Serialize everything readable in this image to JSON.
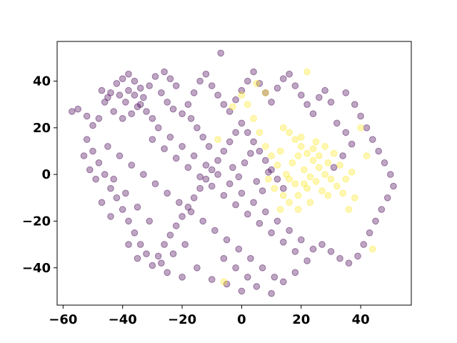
{
  "chart_data": {
    "type": "scatter",
    "title": "",
    "xlabel": "",
    "ylabel": "",
    "xlim": [
      -62,
      57
    ],
    "ylim": [
      -56,
      57
    ],
    "grid": false,
    "legend": "none",
    "x_ticks": [
      -60,
      -40,
      -20,
      0,
      20,
      40
    ],
    "y_ticks": [
      -40,
      -20,
      0,
      20,
      40
    ],
    "x_tick_labels": [
      "−60",
      "−40",
      "−20",
      "0",
      "20",
      "40"
    ],
    "y_tick_labels": [
      "−40",
      "−20",
      "0",
      "20",
      "40"
    ],
    "point_alpha": 0.35,
    "series": [
      {
        "color": "#440154",
        "points": [
          [
            -57,
            27
          ],
          [
            -55,
            28
          ],
          [
            -52,
            25
          ],
          [
            -50,
            21
          ],
          [
            -48,
            24
          ],
          [
            -46,
            31
          ],
          [
            -44,
            35
          ],
          [
            -42,
            39
          ],
          [
            -40,
            41
          ],
          [
            -38,
            43
          ],
          [
            -36,
            40
          ],
          [
            -34,
            37
          ],
          [
            -33,
            33
          ],
          [
            -35,
            29
          ],
          [
            -37,
            26
          ],
          [
            -40,
            24
          ],
          [
            -43,
            27
          ],
          [
            -45,
            33
          ],
          [
            -47,
            36
          ],
          [
            -41,
            34
          ],
          [
            -39,
            31
          ],
          [
            -38,
            36
          ],
          [
            -36,
            34
          ],
          [
            -34,
            30
          ],
          [
            -32,
            27
          ],
          [
            -30,
            24
          ],
          [
            -31,
            38
          ],
          [
            -29,
            42
          ],
          [
            -26,
            44
          ],
          [
            -24,
            41
          ],
          [
            -22,
            38
          ],
          [
            -27,
            35
          ],
          [
            -25,
            31
          ],
          [
            -23,
            28
          ],
          [
            -20,
            26
          ],
          [
            -18,
            30
          ],
          [
            -16,
            35
          ],
          [
            -14,
            40
          ],
          [
            -12,
            43
          ],
          [
            -10,
            38
          ],
          [
            -8,
            34
          ],
          [
            -6,
            30
          ],
          [
            -4,
            27
          ],
          [
            -2,
            32
          ],
          [
            0,
            36
          ],
          [
            2,
            40
          ],
          [
            4,
            44
          ],
          [
            6,
            39
          ],
          [
            8,
            35
          ],
          [
            10,
            31
          ],
          [
            12,
            37
          ],
          [
            14,
            41
          ],
          [
            16,
            43
          ],
          [
            18,
            38
          ],
          [
            20,
            34
          ],
          [
            22,
            30
          ],
          [
            24,
            26
          ],
          [
            26,
            33
          ],
          [
            28,
            36
          ],
          [
            30,
            31
          ],
          [
            -7,
            52
          ],
          [
            -52,
            15
          ],
          [
            -50,
            10
          ],
          [
            -48,
            5
          ],
          [
            -46,
            0
          ],
          [
            -44,
            -6
          ],
          [
            -42,
            -10
          ],
          [
            -40,
            -15
          ],
          [
            -38,
            -20
          ],
          [
            -36,
            -25
          ],
          [
            -34,
            -30
          ],
          [
            -32,
            -34
          ],
          [
            -30,
            -39
          ],
          [
            -28,
            -35
          ],
          [
            -26,
            -30
          ],
          [
            -24,
            -26
          ],
          [
            -22,
            -22
          ],
          [
            -20,
            -18
          ],
          [
            -18,
            -14
          ],
          [
            -16,
            -10
          ],
          [
            -14,
            -6
          ],
          [
            -12,
            -2
          ],
          [
            -10,
            2
          ],
          [
            -8,
            6
          ],
          [
            -6,
            10
          ],
          [
            -4,
            14
          ],
          [
            -2,
            18
          ],
          [
            0,
            22
          ],
          [
            2,
            18
          ],
          [
            4,
            14
          ],
          [
            6,
            10
          ],
          [
            8,
            6
          ],
          [
            10,
            2
          ],
          [
            12,
            -2
          ],
          [
            14,
            -6
          ],
          [
            -45,
            12
          ],
          [
            -41,
            8
          ],
          [
            -37,
            4
          ],
          [
            -33,
            0
          ],
          [
            -29,
            -4
          ],
          [
            -25,
            -8
          ],
          [
            -21,
            -12
          ],
          [
            -17,
            -16
          ],
          [
            -13,
            -20
          ],
          [
            -9,
            -24
          ],
          [
            -5,
            -28
          ],
          [
            -1,
            -32
          ],
          [
            3,
            -36
          ],
          [
            7,
            -40
          ],
          [
            11,
            -44
          ],
          [
            -30,
            15
          ],
          [
            -26,
            11
          ],
          [
            -22,
            7
          ],
          [
            -18,
            3
          ],
          [
            -14,
            -1
          ],
          [
            -10,
            -5
          ],
          [
            -6,
            -9
          ],
          [
            -2,
            -13
          ],
          [
            2,
            -17
          ],
          [
            6,
            -21
          ],
          [
            10,
            -25
          ],
          [
            14,
            -29
          ],
          [
            18,
            -33
          ],
          [
            22,
            -37
          ],
          [
            -28,
            20
          ],
          [
            -24,
            16
          ],
          [
            -20,
            12
          ],
          [
            -16,
            8
          ],
          [
            -12,
            4
          ],
          [
            -8,
            0
          ],
          [
            -4,
            -4
          ],
          [
            0,
            -8
          ],
          [
            4,
            -12
          ],
          [
            8,
            -16
          ],
          [
            12,
            -20
          ],
          [
            16,
            -24
          ],
          [
            20,
            -28
          ],
          [
            24,
            -32
          ],
          [
            -15,
            -40
          ],
          [
            -10,
            -45
          ],
          [
            -5,
            -47
          ],
          [
            0,
            -50
          ],
          [
            5,
            -48
          ],
          [
            10,
            -51
          ],
          [
            14,
            -46
          ],
          [
            18,
            -42
          ],
          [
            -20,
            -44
          ],
          [
            -25,
            -42
          ],
          [
            -35,
            -36
          ],
          [
            -38,
            -30
          ],
          [
            -44,
            -18
          ],
          [
            -47,
            -12
          ],
          [
            -49,
            -2
          ],
          [
            -51,
            2
          ],
          [
            -53,
            8
          ],
          [
            35,
            35
          ],
          [
            38,
            30
          ],
          [
            40,
            25
          ],
          [
            42,
            20
          ],
          [
            44,
            15
          ],
          [
            46,
            10
          ],
          [
            48,
            5
          ],
          [
            50,
            0
          ],
          [
            51,
            -5
          ],
          [
            49,
            -10
          ],
          [
            47,
            -15
          ],
          [
            45,
            -20
          ],
          [
            43,
            -25
          ],
          [
            41,
            -30
          ],
          [
            39,
            -35
          ],
          [
            36,
            -38
          ],
          [
            33,
            -36
          ],
          [
            30,
            -33
          ],
          [
            27,
            -30
          ],
          [
            32,
            22
          ],
          [
            35,
            18
          ],
          [
            37,
            13
          ],
          [
            34,
            8
          ],
          [
            31,
            3
          ],
          [
            -3,
            3
          ],
          [
            -1,
            -1
          ],
          [
            1,
            5
          ],
          [
            3,
            9
          ],
          [
            5,
            -3
          ],
          [
            7,
            -7
          ],
          [
            9,
            1
          ],
          [
            -11,
            12
          ],
          [
            -13,
            16
          ],
          [
            -15,
            20
          ],
          [
            -17,
            24
          ],
          [
            -19,
            -30
          ],
          [
            -23,
            -34
          ],
          [
            -27,
            -38
          ],
          [
            -31,
            -20
          ],
          [
            -35,
            -14
          ],
          [
            -39,
            -8
          ],
          [
            -43,
            -2
          ],
          [
            -6,
            -36
          ],
          [
            -2,
            -40
          ],
          [
            2,
            -44
          ]
        ]
      },
      {
        "color": "#fde725",
        "points": [
          [
            14,
            20
          ],
          [
            16,
            18
          ],
          [
            18,
            15
          ],
          [
            20,
            12
          ],
          [
            22,
            9
          ],
          [
            24,
            6
          ],
          [
            26,
            3
          ],
          [
            28,
            0
          ],
          [
            25,
            -3
          ],
          [
            22,
            -6
          ],
          [
            19,
            -9
          ],
          [
            16,
            -12
          ],
          [
            13,
            -15
          ],
          [
            17,
            5
          ],
          [
            19,
            8
          ],
          [
            21,
            2
          ],
          [
            23,
            -1
          ],
          [
            15,
            0
          ],
          [
            12,
            4
          ],
          [
            10,
            8
          ],
          [
            13,
            10
          ],
          [
            18,
            -4
          ],
          [
            26,
            8
          ],
          [
            29,
            5
          ],
          [
            30,
            -2
          ],
          [
            27,
            -7
          ],
          [
            24,
            11
          ],
          [
            20,
            16
          ],
          [
            11,
            -6
          ],
          [
            14,
            -9
          ],
          [
            16,
            -2
          ],
          [
            21,
            -4
          ],
          [
            25,
            14
          ],
          [
            28,
            12
          ],
          [
            31,
            9
          ],
          [
            33,
            4
          ],
          [
            32,
            -5
          ],
          [
            29,
            -9
          ],
          [
            23,
            -12
          ],
          [
            19,
            -15
          ],
          [
            35,
            -2
          ],
          [
            37,
            1
          ],
          [
            34,
            -8
          ],
          [
            9,
            -2
          ],
          [
            8,
            12
          ],
          [
            6,
            18
          ],
          [
            4,
            24
          ],
          [
            2,
            30
          ],
          [
            0,
            34
          ],
          [
            -3,
            29
          ],
          [
            40,
            20
          ],
          [
            42,
            8
          ],
          [
            38,
            -10
          ],
          [
            36,
            -15
          ],
          [
            -8,
            15
          ],
          [
            -6,
            -46
          ],
          [
            8,
            35
          ],
          [
            5,
            39
          ],
          [
            22,
            44
          ],
          [
            44,
            -32
          ]
        ]
      }
    ]
  }
}
